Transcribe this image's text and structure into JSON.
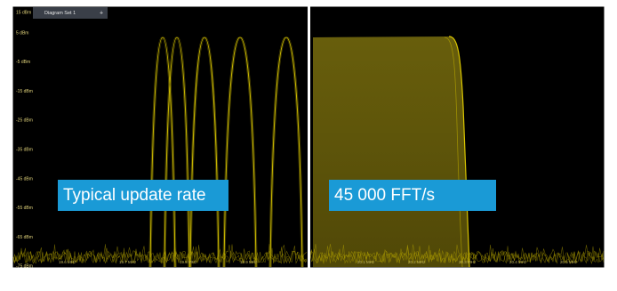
{
  "tab": {
    "title": "Diagram Set 1",
    "plus": "+"
  },
  "y_axis_labels": [
    "15 dBm",
    "5 dBm",
    "-5 dBm",
    "-15 dBm",
    "-25 dBm",
    "-35 dBm",
    "-45 dBm",
    "-55 dBm",
    "-65 dBm",
    "-75 dBm"
  ],
  "x_axis_labels_left": [
    "19.6 MHz",
    "19.7 MHz",
    "19.8 MHz",
    "19.9 MHz"
  ],
  "x_axis_labels_right": [
    "20.1 MHz",
    "20.2 MHz",
    "20.3 MHz",
    "20.4 MHz",
    "20.5 MHz"
  ],
  "overlays": {
    "left": "Typical update rate",
    "right": "45 000 FFT/s"
  }
}
